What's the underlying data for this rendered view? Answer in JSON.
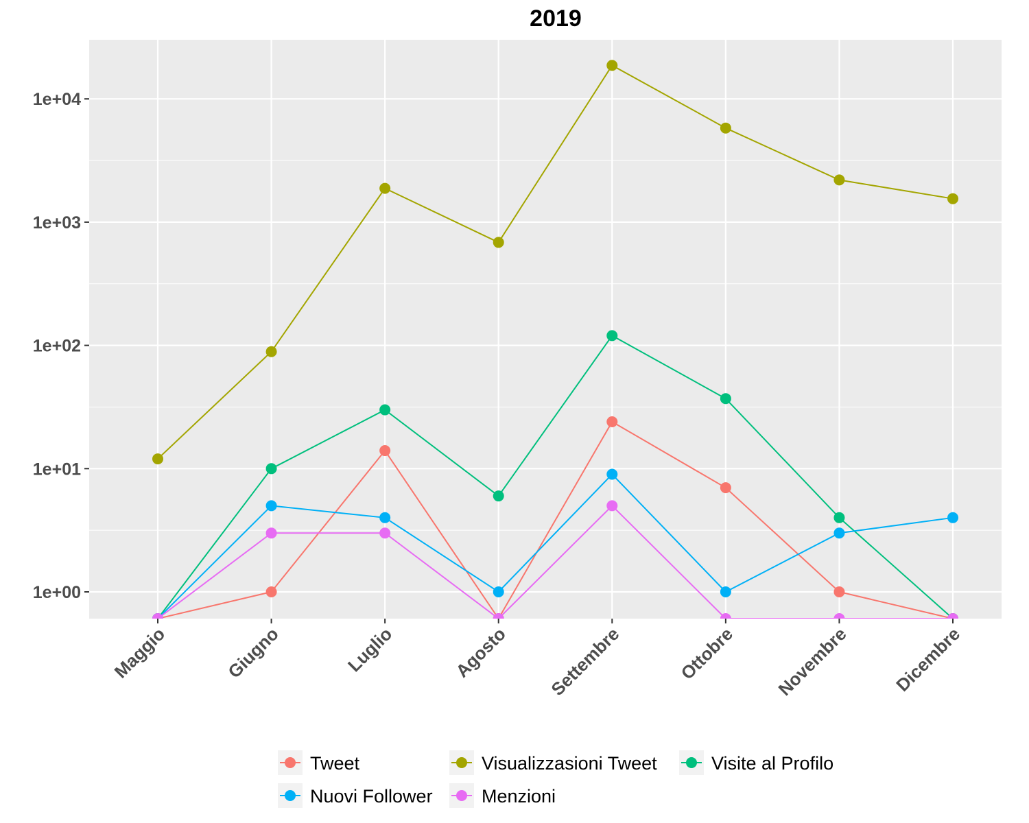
{
  "chart_data": {
    "type": "line",
    "title": "2019",
    "xlabel": "",
    "ylabel": "",
    "y_scale": "log10",
    "ylim": [
      0.6,
      30000
    ],
    "y_ticks": [
      1,
      10,
      100,
      1000,
      10000
    ],
    "y_tick_labels": [
      "1e+00",
      "1e+01",
      "1e+02",
      "1e+03",
      "1e+04"
    ],
    "categories": [
      "Maggio",
      "Giugno",
      "Luglio",
      "Agosto",
      "Settembre",
      "Ottobre",
      "Novembre",
      "Dicembre"
    ],
    "grid": true,
    "legend_position": "bottom",
    "series": [
      {
        "name": "Tweet",
        "color": "#F8766D",
        "values": [
          0.6,
          1,
          14,
          0.6,
          24,
          7,
          1,
          0.6
        ]
      },
      {
        "name": "Visualizzasioni Tweet",
        "color": "#A3A500",
        "values": [
          12,
          89,
          1880,
          685,
          18700,
          5800,
          2200,
          1550
        ]
      },
      {
        "name": "Visite al Profilo",
        "color": "#00BF7D",
        "values": [
          0.6,
          10,
          30,
          6,
          120,
          37,
          4,
          0.6
        ]
      },
      {
        "name": "Nuovi Follower",
        "color": "#00B0F6",
        "values": [
          0.6,
          5,
          4,
          1,
          9,
          1,
          3,
          4
        ]
      },
      {
        "name": "Menzioni",
        "color": "#E76BF3",
        "values": [
          0.6,
          3,
          3,
          0.6,
          5,
          0.6,
          0.6,
          0.6
        ]
      }
    ]
  }
}
